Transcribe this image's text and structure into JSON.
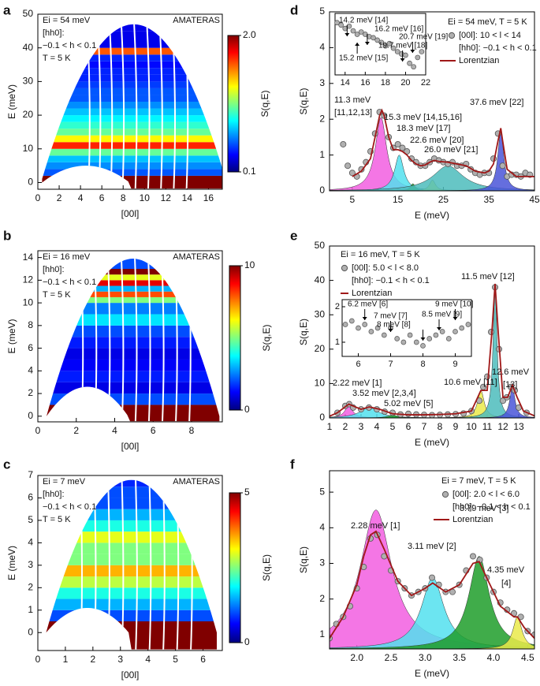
{
  "chart_data": [
    {
      "type": "heatmap",
      "panel": "a",
      "x_label": "[00l]",
      "y_label": "E (meV)",
      "xlim": [
        0,
        17.3
      ],
      "xticks": [
        0,
        2,
        4,
        6,
        8,
        10,
        12,
        14,
        16
      ],
      "ylim": [
        -2,
        50
      ],
      "yticks": [
        0,
        10,
        20,
        30,
        40,
        50
      ],
      "energies": [
        0,
        2,
        4,
        6,
        8,
        10,
        12,
        14,
        16,
        18,
        20,
        22,
        24,
        26,
        28,
        30,
        32,
        34,
        36,
        38,
        40,
        45
      ],
      "values": [
        2.0,
        0.5,
        0.6,
        0.7,
        1.0,
        1.7,
        1.3,
        1.0,
        0.9,
        0.8,
        0.7,
        0.6,
        0.5,
        0.5,
        0.45,
        0.4,
        0.4,
        0.35,
        0.4,
        1.6,
        0.3,
        0.3
      ],
      "clim": [
        0.1,
        2.0
      ],
      "cticks": [
        {
          "value": 2,
          "label": "2.0"
        },
        0.1
      ],
      "colorbar_label": "S(q,E)",
      "annotations": [
        "Ei = 54 meV",
        "[hh0]:",
        "−0.1 < h < 0.1",
        "T = 5 K"
      ],
      "instrument": "AMATERAS"
    },
    {
      "type": "heatmap",
      "panel": "b",
      "x_label": "[00l]",
      "y_label": "E (meV)",
      "xlim": [
        0,
        9.6
      ],
      "xticks": [
        0,
        2,
        4,
        6,
        8
      ],
      "ylim": [
        -0.5,
        14.6
      ],
      "yticks": [
        0,
        2,
        4,
        6,
        8,
        10,
        12,
        14
      ],
      "energies": [
        0,
        1,
        2,
        3,
        4,
        5,
        6,
        7,
        8,
        9,
        10,
        10.5,
        11,
        11.5,
        12,
        12.5,
        13
      ],
      "values": [
        10,
        2,
        1,
        1.5,
        1.2,
        1.0,
        1.5,
        2.0,
        3.5,
        2.5,
        5,
        8,
        3,
        9,
        6,
        10,
        2
      ],
      "clim": [
        0,
        10
      ],
      "cticks": [
        10,
        0
      ],
      "colorbar_label": "S(q,E)",
      "annotations": [
        "Ei = 16 meV",
        "[hh0]:",
        "−0.1 < h < 0.1",
        "T = 5 K"
      ],
      "instrument": "AMATERAS"
    },
    {
      "type": "heatmap",
      "panel": "c",
      "x_label": "[00l]",
      "y_label": "E (meV)",
      "xlim": [
        0,
        6.7
      ],
      "xticks": [
        0,
        1,
        2,
        3,
        4,
        5,
        6
      ],
      "ylim": [
        -0.8,
        7
      ],
      "yticks": [
        0,
        1,
        2,
        3,
        4,
        5,
        6,
        7
      ],
      "energies": [
        0,
        0.5,
        1,
        1.5,
        2,
        2.5,
        3,
        3.5,
        4,
        4.5,
        5,
        5.5,
        6,
        6.5
      ],
      "values": [
        5,
        1,
        1.5,
        2,
        2.8,
        3.5,
        2.5,
        2.5,
        3,
        2,
        1.5,
        1,
        1,
        0.8
      ],
      "clim": [
        0,
        5
      ],
      "cticks": [
        5,
        0
      ],
      "colorbar_label": "S(q,E)",
      "annotations": [
        "Ei = 7 meV",
        "[hh0]:",
        "−0.1 < h < 0.1",
        "T = 5 K"
      ],
      "instrument": "AMATERAS"
    },
    {
      "type": "spectrum",
      "panel": "d",
      "x_label": "E (meV)",
      "y_label": "S(q,E)",
      "xlim": [
        0,
        45
      ],
      "xticks": [
        5,
        15,
        25,
        35,
        45
      ],
      "ylim": [
        0,
        5
      ],
      "yticks": [
        0,
        1,
        2,
        3,
        4,
        5
      ],
      "legend_title": "Ei = 54 meV, T = 5 K",
      "legend_note": "[hh0]: −0.1 < h < 0.1",
      "series": [
        {
          "name": "[00l]: 10 < l < 14",
          "color": "#b0b0b0",
          "x": [
            3,
            4,
            5,
            6,
            7,
            8,
            9,
            10,
            11,
            12,
            13,
            14,
            15,
            16,
            17,
            18,
            19,
            20,
            21,
            22,
            23,
            24,
            25,
            26,
            27,
            28,
            29,
            30,
            31,
            32,
            33,
            34,
            35,
            36,
            37,
            38,
            39,
            40,
            41,
            42,
            43,
            44
          ],
          "values": [
            1.3,
            0.7,
            0.5,
            0.4,
            0.6,
            0.8,
            1.1,
            1.6,
            2.2,
            2.1,
            1.5,
            1.2,
            1.3,
            1.2,
            1.1,
            0.9,
            0.8,
            0.7,
            0.7,
            0.8,
            0.9,
            0.85,
            0.8,
            0.75,
            0.8,
            0.7,
            0.7,
            0.75,
            0.6,
            0.5,
            0.45,
            0.5,
            0.5,
            0.9,
            1.6,
            0.7,
            0.4,
            0.45,
            0.45,
            0.4,
            0.5,
            0.45
          ]
        },
        {
          "name": "Lorentzian",
          "color": "#a01818",
          "x": [
            5,
            7,
            9,
            10,
            11,
            11.5,
            12,
            13,
            14,
            15,
            16,
            17,
            18,
            19,
            20,
            21,
            22,
            23,
            24,
            26,
            28,
            30,
            32,
            34,
            35,
            36,
            37,
            37.6,
            38,
            39,
            41,
            45
          ],
          "values": [
            0.4,
            0.55,
            0.9,
            1.5,
            2.1,
            2.25,
            2.1,
            1.5,
            1.15,
            1.15,
            1.1,
            1.0,
            0.85,
            0.75,
            0.7,
            0.72,
            0.8,
            0.85,
            0.82,
            0.8,
            0.75,
            0.7,
            0.55,
            0.5,
            0.55,
            0.75,
            1.4,
            1.75,
            1.4,
            0.6,
            0.4,
            0.4
          ]
        }
      ],
      "peaks": [
        {
          "center": 11.3,
          "height": 2.05,
          "width": 1.5,
          "color": "#f25ee0",
          "label": [
            "11.3 meV",
            "[11,12,13]"
          ]
        },
        {
          "center": 15.3,
          "height": 1.0,
          "width": 1.2,
          "color": "#52e0ee",
          "label": [
            "15.3 meV [14,15,16]"
          ]
        },
        {
          "center": 18.3,
          "height": 0.2,
          "width": 0.6,
          "color": "#1f9e2a",
          "label": [
            "18.3 meV [17]"
          ]
        },
        {
          "center": 22.6,
          "height": 0.3,
          "width": 0.8,
          "color": "#eaea4a",
          "label": [
            "22.6 meV [20]"
          ]
        },
        {
          "center": 26.0,
          "height": 0.7,
          "width": 4,
          "color": "#4cbcbc",
          "label": [
            "26.0 meV [21]"
          ]
        },
        {
          "center": 37.6,
          "height": 1.65,
          "width": 0.8,
          "color": "#4a55d8",
          "label": [
            "37.6 meV [22]"
          ]
        }
      ],
      "inset": {
        "xlim": [
          13,
          22
        ],
        "xticks": [
          14,
          16,
          18,
          20,
          22
        ],
        "ylim": [
          0.55,
          1.08
        ],
        "x": [
          13.2,
          13.6,
          14,
          14.4,
          14.8,
          15.2,
          15.6,
          16,
          16.4,
          16.8,
          17.2,
          17.6,
          18,
          18.4,
          18.8,
          19.2,
          19.6,
          20,
          20.4,
          20.8,
          21.2,
          21.6
        ],
        "values": [
          1.0,
          0.98,
          0.95,
          0.97,
          0.93,
          0.9,
          0.92,
          0.9,
          0.88,
          0.87,
          0.85,
          0.83,
          0.8,
          0.82,
          0.78,
          0.75,
          0.73,
          0.72,
          0.65,
          0.62,
          0.7,
          0.75
        ],
        "arrows": [
          {
            "x": 14.2,
            "label": "14.2 meV [14]"
          },
          {
            "x": 15.2,
            "label": "15.2 meV [15]"
          },
          {
            "x": 16.2,
            "label": "16.2 meV [16]"
          },
          {
            "x": 19.7,
            "label": "19.7 meV [18]"
          },
          {
            "x": 20.7,
            "label": "20.7 meV [19]"
          }
        ]
      }
    },
    {
      "type": "spectrum",
      "panel": "e",
      "x_label": "E (meV)",
      "y_label": "S(q,E)",
      "xlim": [
        1,
        14
      ],
      "xticks": [
        1,
        2,
        3,
        4,
        5,
        6,
        7,
        8,
        9,
        10,
        11,
        12,
        13
      ],
      "ylim": [
        0,
        50
      ],
      "yticks": [
        0,
        10,
        20,
        30,
        40,
        50
      ],
      "legend_title": "Ei = 16 meV, T = 5 K",
      "legend_note": "[hh0]: −0.1 < h < 0.1",
      "series": [
        {
          "name": "[00l]: 5.0 < l < 8.0",
          "color": "#b0b0b0",
          "x": [
            1.5,
            2,
            2.25,
            2.5,
            3,
            3.5,
            4,
            4.5,
            5,
            5.5,
            6,
            6.5,
            7,
            7.5,
            8,
            8.5,
            9,
            9.5,
            10,
            10.5,
            10.75,
            11,
            11.25,
            11.5,
            11.75,
            12,
            12.25,
            12.5,
            12.75,
            13,
            13.5
          ],
          "values": [
            1.5,
            3.5,
            4,
            3,
            2.5,
            3,
            2.5,
            1.8,
            1.5,
            1.0,
            1.2,
            1.0,
            0.9,
            0.8,
            0.9,
            1.0,
            1.1,
            1.3,
            2,
            5,
            9,
            12,
            25,
            38,
            20,
            5,
            6,
            9,
            8,
            3,
            1.5
          ]
        },
        {
          "name": "Lorentzian",
          "color": "#a01818",
          "x": [
            1,
            1.5,
            2.22,
            3,
            3.52,
            4.2,
            5,
            6,
            7,
            8,
            9,
            10,
            10.6,
            11,
            11.3,
            11.5,
            11.7,
            12,
            12.3,
            12.6,
            12.9,
            13.3,
            14
          ],
          "values": [
            0.5,
            1.5,
            4,
            2.5,
            3.2,
            2.5,
            1.2,
            0.9,
            0.9,
            1,
            1.2,
            2,
            8,
            8,
            25,
            39,
            25,
            6,
            6,
            9.5,
            6,
            2,
            0.6
          ]
        }
      ],
      "peaks": [
        {
          "center": 2.22,
          "height": 3.5,
          "width": 0.3,
          "color": "#f25ee0",
          "label": [
            "2.22 meV [1]"
          ]
        },
        {
          "center": 3.52,
          "height": 3,
          "width": 0.7,
          "color": "#52e0ee",
          "label": [
            "3.52 meV [2,3,4]"
          ]
        },
        {
          "center": 5.02,
          "height": 0.8,
          "width": 0.4,
          "color": "#1f9e2a",
          "label": [
            "5.02 meV [5]"
          ]
        },
        {
          "center": 10.6,
          "height": 8,
          "width": 0.25,
          "color": "#eaea4a",
          "label": [
            "10.6 meV [11]"
          ]
        },
        {
          "center": 11.5,
          "height": 38,
          "width": 0.15,
          "color": "#4cbcbc",
          "label": [
            "11.5 meV [12]"
          ]
        },
        {
          "center": 12.6,
          "height": 9,
          "width": 0.2,
          "color": "#4a55d8",
          "label": [
            "12.6 meV",
            "[13]"
          ]
        }
      ],
      "inset": {
        "xlim": [
          5.5,
          9.5
        ],
        "xticks": [
          6,
          7,
          8,
          9
        ],
        "ylim": [
          0.6,
          2.2
        ],
        "yticks": [
          1,
          2
        ],
        "x": [
          5.6,
          5.8,
          6.0,
          6.2,
          6.4,
          6.6,
          6.8,
          7.0,
          7.2,
          7.4,
          7.6,
          7.8,
          8.0,
          8.2,
          8.4,
          8.6,
          8.8,
          9.0,
          9.2,
          9.4
        ],
        "values": [
          1.5,
          1.6,
          1.4,
          1.5,
          1.3,
          1.4,
          1.2,
          1.4,
          1.1,
          1.0,
          1.2,
          1.0,
          0.9,
          1.1,
          1.2,
          1.3,
          1.1,
          1.3,
          1.4,
          1.5
        ],
        "arrows": [
          {
            "x": 6.2,
            "label": "6.2 meV [6]"
          },
          {
            "x": 7,
            "label": "7 meV [7]"
          },
          {
            "x": 8,
            "label": "8 meV [8]"
          },
          {
            "x": 8.5,
            "label": "8.5 meV [9]"
          },
          {
            "x": 9,
            "label": "9 meV [10]"
          }
        ]
      }
    },
    {
      "type": "spectrum",
      "panel": "f",
      "x_label": "E (meV)",
      "y_label": "S(q,E)",
      "xlim": [
        1.6,
        4.6
      ],
      "xticks": [
        {
          "value": 2,
          "label": "2.0"
        },
        2.5,
        {
          "value": 3,
          "label": "3.0"
        },
        3.5,
        {
          "value": 4,
          "label": "4.0"
        },
        4.5
      ],
      "ylim": [
        0.6,
        5.6
      ],
      "yticks": [
        1,
        2,
        3,
        4,
        5
      ],
      "legend_title": "Ei = 7 meV, T = 5 K",
      "legend_note": "[hh0]: −0.1 < h < 0.1",
      "series": [
        {
          "name": "[00l]: 2.0 < l < 6.0",
          "color": "#b0b0b0",
          "x": [
            1.6,
            1.7,
            1.8,
            1.9,
            2.0,
            2.1,
            2.2,
            2.3,
            2.4,
            2.5,
            2.6,
            2.7,
            2.8,
            2.9,
            3.0,
            3.1,
            3.2,
            3.3,
            3.4,
            3.5,
            3.6,
            3.7,
            3.8,
            3.9,
            4.0,
            4.1,
            4.2,
            4.3,
            4.4,
            4.5,
            4.6
          ],
          "values": [
            0.9,
            1.3,
            1.5,
            1.8,
            2.3,
            2.9,
            3.7,
            3.8,
            3.2,
            2.8,
            2.5,
            2.3,
            2.1,
            2.2,
            2.3,
            2.6,
            2.4,
            2.2,
            2.2,
            2.4,
            2.8,
            3.2,
            3.1,
            2.6,
            2.2,
            1.9,
            1.7,
            1.6,
            1.5,
            1.1,
            1.0
          ]
        },
        {
          "name": "Lorentzian",
          "color": "#a01818",
          "x": [
            1.6,
            1.8,
            2.0,
            2.1,
            2.2,
            2.28,
            2.4,
            2.6,
            2.8,
            3.0,
            3.11,
            3.3,
            3.5,
            3.7,
            3.79,
            3.9,
            4.1,
            4.3,
            4.35,
            4.45,
            4.6
          ],
          "values": [
            0.9,
            1.5,
            2.4,
            3.2,
            3.8,
            3.9,
            3.4,
            2.5,
            2.1,
            2.3,
            2.45,
            2.2,
            2.4,
            3.0,
            3.05,
            2.6,
            1.8,
            1.5,
            1.5,
            1.2,
            0.9
          ]
        }
      ],
      "peaks": [
        {
          "center": 2.28,
          "height": 3.9,
          "width": 0.28,
          "color": "#f25ee0",
          "label": [
            "2.28 meV [1]"
          ]
        },
        {
          "center": 3.11,
          "height": 2.0,
          "width": 0.2,
          "color": "#52e0ee",
          "label": [
            "3.11 meV [2]"
          ]
        },
        {
          "center": 3.79,
          "height": 2.6,
          "width": 0.18,
          "color": "#1f9e2a",
          "label": [
            "3.79 meV [3]"
          ]
        },
        {
          "center": 4.35,
          "height": 0.9,
          "width": 0.08,
          "color": "#eaea4a",
          "label": [
            "4.35 meV",
            "[4]"
          ]
        }
      ]
    }
  ]
}
